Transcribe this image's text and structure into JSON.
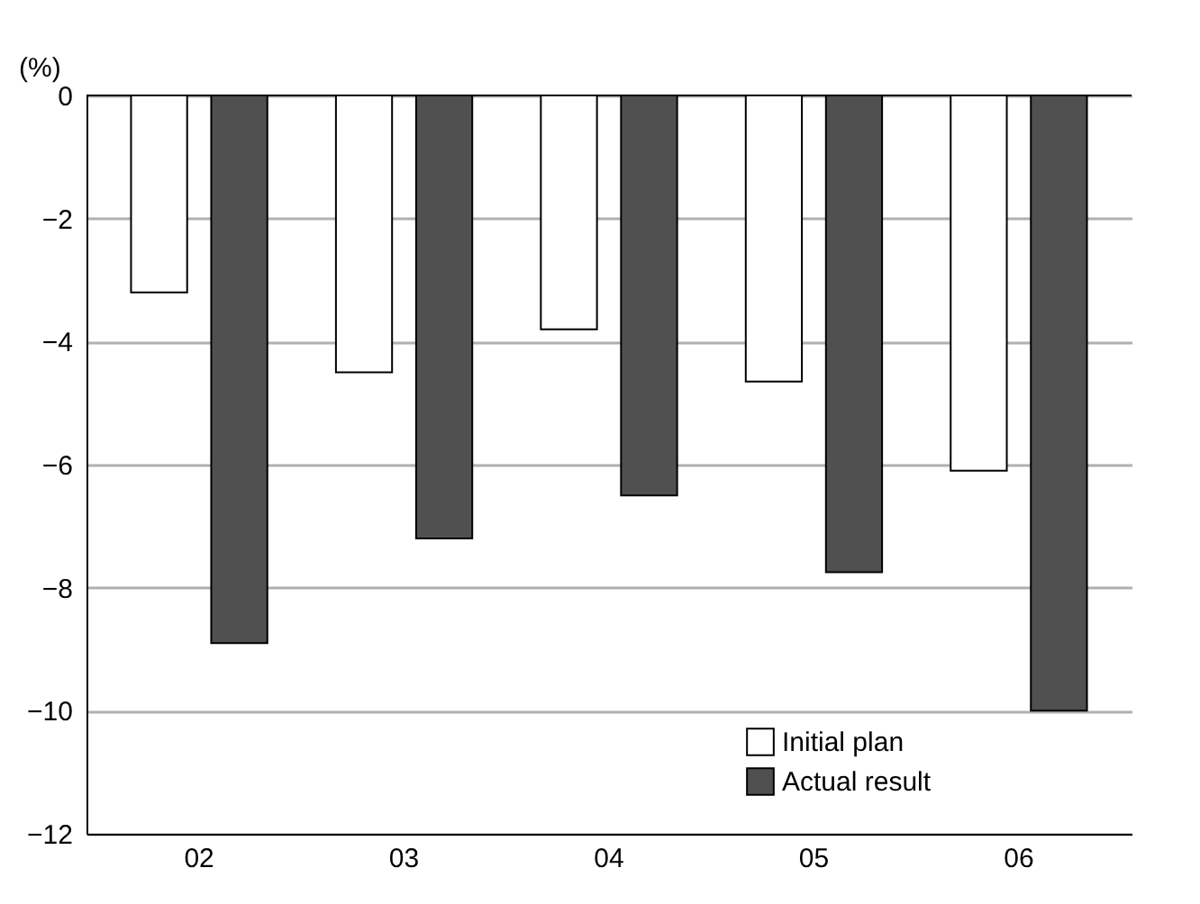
{
  "chart_data": {
    "type": "bar",
    "ylabel": "(%)",
    "categories": [
      "02",
      "03",
      "04",
      "05",
      "06"
    ],
    "series": [
      {
        "name": "Initial plan",
        "color": "#ffffff",
        "values": [
          -3.2,
          -4.5,
          -3.8,
          -4.65,
          -6.1
        ]
      },
      {
        "name": "Actual result",
        "color": "#505050",
        "values": [
          -8.9,
          -7.2,
          -6.5,
          -7.75,
          -10.0
        ]
      }
    ],
    "ylim": [
      -12,
      0
    ],
    "yticks": [
      -12,
      -10,
      -8,
      -6,
      -4,
      -2,
      0
    ],
    "grid": "y",
    "legend": "bottom right"
  }
}
